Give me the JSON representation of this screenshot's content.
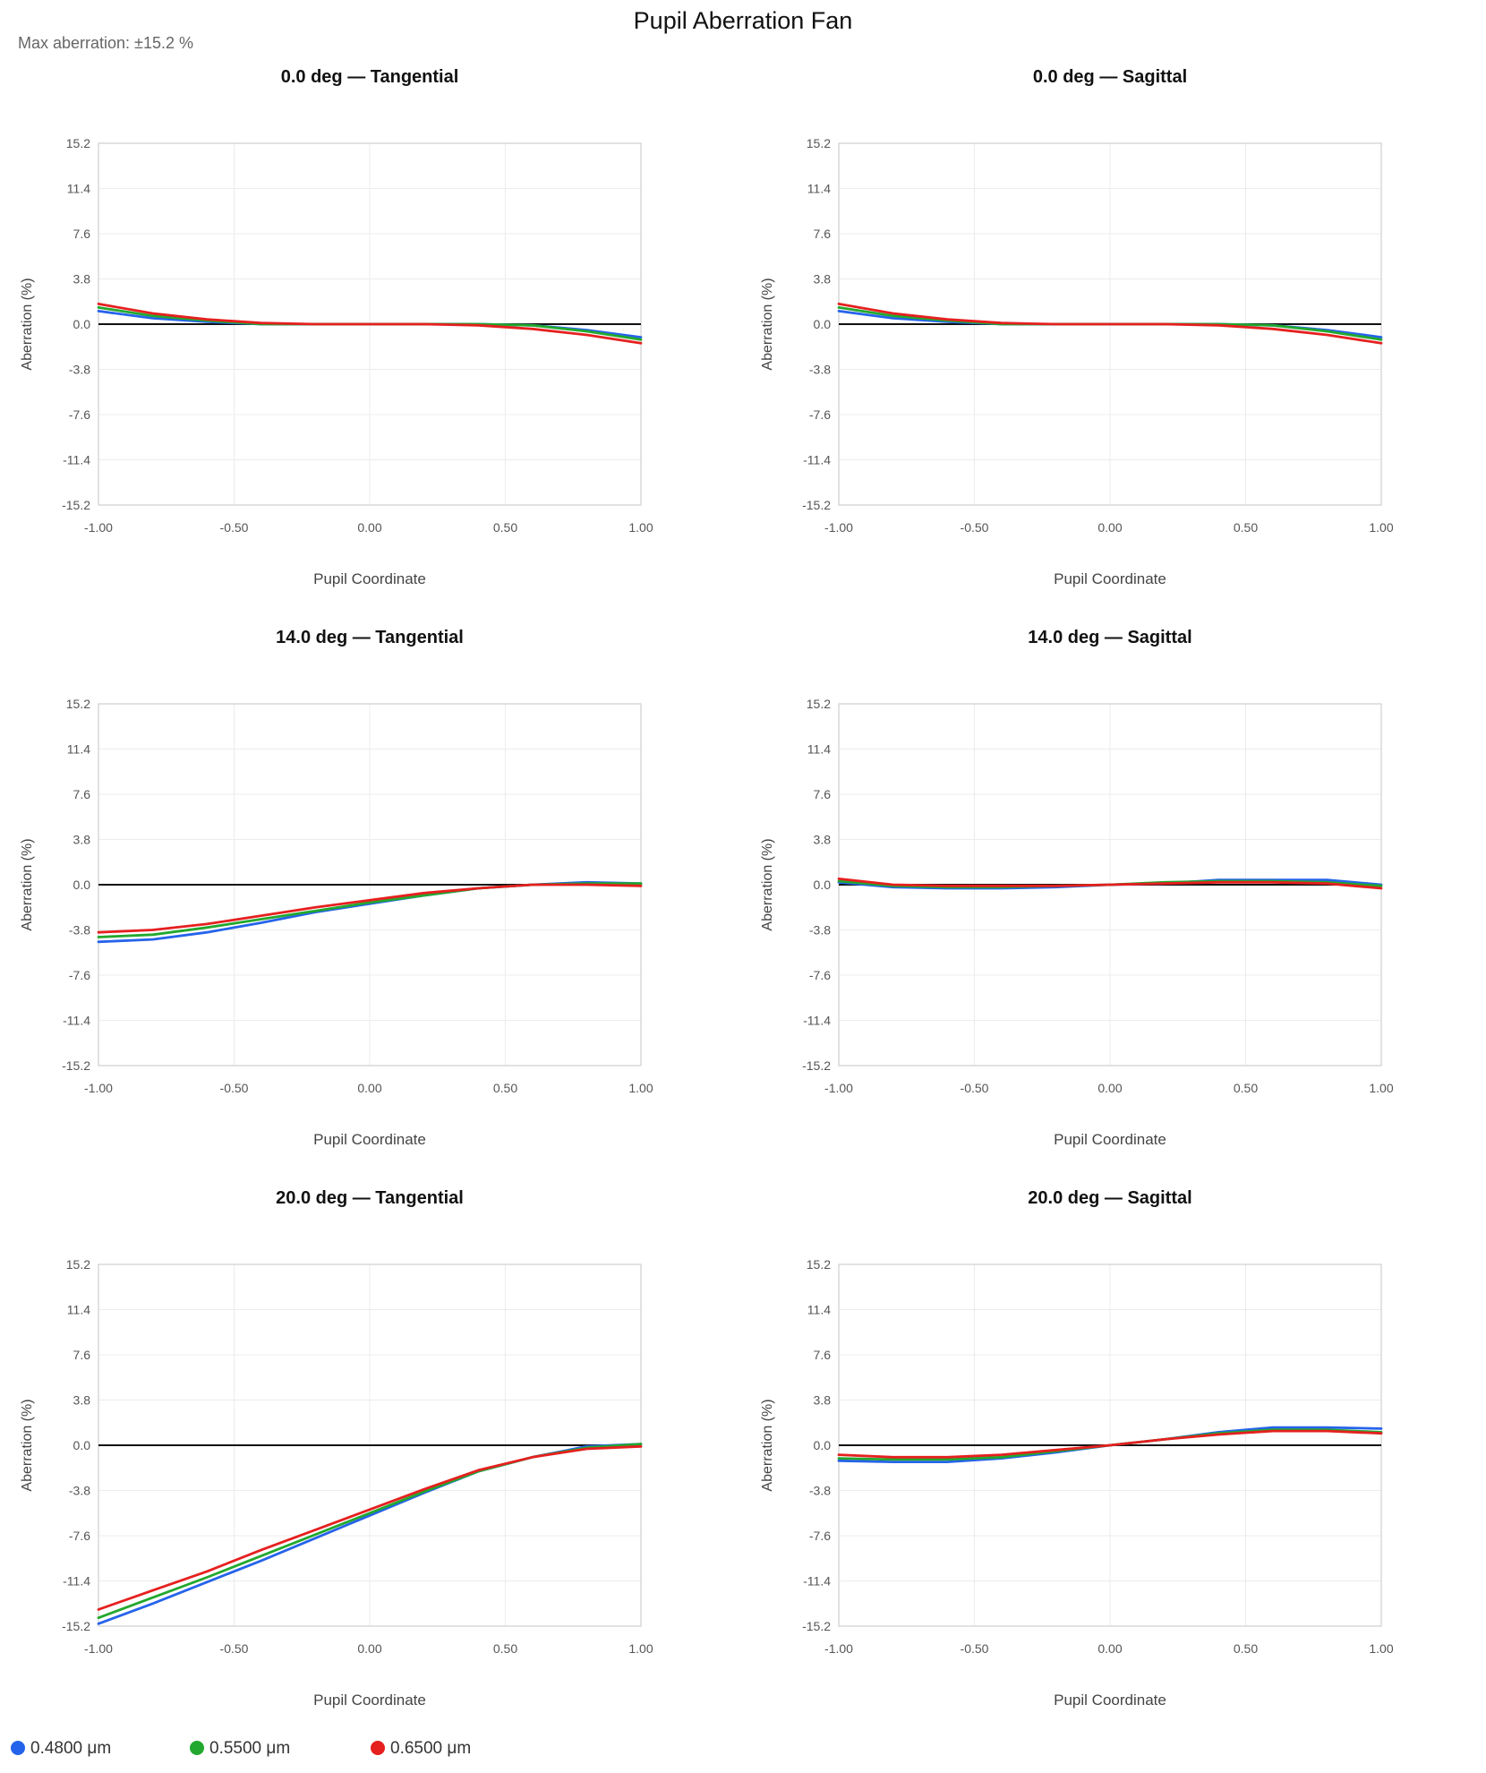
{
  "title": "Pupil Aberration Fan",
  "subtitle": "Max aberration: ±15.2 %",
  "legend": [
    {
      "label": "0.4800 μm",
      "color": "#2563eb"
    },
    {
      "label": "0.5500 μm",
      "color": "#22a82e"
    },
    {
      "label": "0.6500 μm",
      "color": "#e5201f"
    }
  ],
  "chart_data": [
    {
      "type": "line",
      "title": "0.0 deg — Tangential",
      "xlabel": "Pupil Coordinate",
      "ylabel": "Aberration (%)",
      "xlim": [
        -1,
        1
      ],
      "ylim": [
        -15.2,
        15.2
      ],
      "xticks": [
        "-1.00",
        "-0.50",
        "0.00",
        "0.50",
        "1.00"
      ],
      "yticks": [
        "15.2",
        "11.4",
        "7.6",
        "3.8",
        "0.0",
        "-3.8",
        "-7.6",
        "-11.4",
        "-15.2"
      ],
      "grid": true,
      "series": [
        {
          "name": "0.4800 μm",
          "x": [
            -1,
            -0.8,
            -0.6,
            -0.4,
            -0.2,
            0,
            0.2,
            0.4,
            0.6,
            0.8,
            1
          ],
          "y": [
            1.1,
            0.5,
            0.2,
            0.0,
            0.0,
            0.0,
            0.0,
            0.0,
            -0.1,
            -0.5,
            -1.1
          ]
        },
        {
          "name": "0.5500 μm",
          "x": [
            -1,
            -0.8,
            -0.6,
            -0.4,
            -0.2,
            0,
            0.2,
            0.4,
            0.6,
            0.8,
            1
          ],
          "y": [
            1.4,
            0.7,
            0.3,
            0.0,
            0.0,
            0.0,
            0.0,
            0.0,
            -0.1,
            -0.6,
            -1.3
          ]
        },
        {
          "name": "0.6500 μm",
          "x": [
            -1,
            -0.8,
            -0.6,
            -0.4,
            -0.2,
            0,
            0.2,
            0.4,
            0.6,
            0.8,
            1
          ],
          "y": [
            1.7,
            0.9,
            0.4,
            0.1,
            0.0,
            0.0,
            0.0,
            -0.1,
            -0.4,
            -0.9,
            -1.6
          ]
        }
      ]
    },
    {
      "type": "line",
      "title": "0.0 deg — Sagittal",
      "xlabel": "Pupil Coordinate",
      "ylabel": "Aberration (%)",
      "xlim": [
        -1,
        1
      ],
      "ylim": [
        -15.2,
        15.2
      ],
      "xticks": [
        "-1.00",
        "-0.50",
        "0.00",
        "0.50",
        "1.00"
      ],
      "yticks": [
        "15.2",
        "11.4",
        "7.6",
        "3.8",
        "0.0",
        "-3.8",
        "-7.6",
        "-11.4",
        "-15.2"
      ],
      "grid": true,
      "series": [
        {
          "name": "0.4800 μm",
          "x": [
            -1,
            -0.8,
            -0.6,
            -0.4,
            -0.2,
            0,
            0.2,
            0.4,
            0.6,
            0.8,
            1
          ],
          "y": [
            1.1,
            0.5,
            0.2,
            0.0,
            0.0,
            0.0,
            0.0,
            0.0,
            -0.1,
            -0.5,
            -1.1
          ]
        },
        {
          "name": "0.5500 μm",
          "x": [
            -1,
            -0.8,
            -0.6,
            -0.4,
            -0.2,
            0,
            0.2,
            0.4,
            0.6,
            0.8,
            1
          ],
          "y": [
            1.4,
            0.7,
            0.3,
            0.0,
            0.0,
            0.0,
            0.0,
            0.0,
            -0.1,
            -0.6,
            -1.3
          ]
        },
        {
          "name": "0.6500 μm",
          "x": [
            -1,
            -0.8,
            -0.6,
            -0.4,
            -0.2,
            0,
            0.2,
            0.4,
            0.6,
            0.8,
            1
          ],
          "y": [
            1.7,
            0.9,
            0.4,
            0.1,
            0.0,
            0.0,
            0.0,
            -0.1,
            -0.4,
            -0.9,
            -1.6
          ]
        }
      ]
    },
    {
      "type": "line",
      "title": "14.0 deg — Tangential",
      "xlabel": "Pupil Coordinate",
      "ylabel": "Aberration (%)",
      "xlim": [
        -1,
        1
      ],
      "ylim": [
        -15.2,
        15.2
      ],
      "xticks": [
        "-1.00",
        "-0.50",
        "0.00",
        "0.50",
        "1.00"
      ],
      "yticks": [
        "15.2",
        "11.4",
        "7.6",
        "3.8",
        "0.0",
        "-3.8",
        "-7.6",
        "-11.4",
        "-15.2"
      ],
      "grid": true,
      "series": [
        {
          "name": "0.4800 μm",
          "x": [
            -1,
            -0.8,
            -0.6,
            -0.4,
            -0.2,
            0,
            0.2,
            0.4,
            0.6,
            0.8,
            1
          ],
          "y": [
            -4.8,
            -4.6,
            -4.0,
            -3.2,
            -2.3,
            -1.6,
            -0.9,
            -0.3,
            0.0,
            0.2,
            0.1
          ]
        },
        {
          "name": "0.5500 μm",
          "x": [
            -1,
            -0.8,
            -0.6,
            -0.4,
            -0.2,
            0,
            0.2,
            0.4,
            0.6,
            0.8,
            1
          ],
          "y": [
            -4.4,
            -4.2,
            -3.6,
            -2.9,
            -2.2,
            -1.5,
            -0.9,
            -0.3,
            0.0,
            0.1,
            0.1
          ]
        },
        {
          "name": "0.6500 μm",
          "x": [
            -1,
            -0.8,
            -0.6,
            -0.4,
            -0.2,
            0,
            0.2,
            0.4,
            0.6,
            0.8,
            1
          ],
          "y": [
            -4.0,
            -3.8,
            -3.3,
            -2.6,
            -1.9,
            -1.3,
            -0.7,
            -0.3,
            0.0,
            0.0,
            -0.1
          ]
        }
      ]
    },
    {
      "type": "line",
      "title": "14.0 deg — Sagittal",
      "xlabel": "Pupil Coordinate",
      "ylabel": "Aberration (%)",
      "xlim": [
        -1,
        1
      ],
      "ylim": [
        -15.2,
        15.2
      ],
      "xticks": [
        "-1.00",
        "-0.50",
        "0.00",
        "0.50",
        "1.00"
      ],
      "yticks": [
        "15.2",
        "11.4",
        "7.6",
        "3.8",
        "0.0",
        "-3.8",
        "-7.6",
        "-11.4",
        "-15.2"
      ],
      "grid": true,
      "series": [
        {
          "name": "0.4800 μm",
          "x": [
            -1,
            -0.8,
            -0.6,
            -0.4,
            -0.2,
            0,
            0.2,
            0.4,
            0.6,
            0.8,
            1
          ],
          "y": [
            0.2,
            -0.2,
            -0.3,
            -0.3,
            -0.2,
            0.0,
            0.1,
            0.4,
            0.4,
            0.4,
            0.0
          ]
        },
        {
          "name": "0.5500 μm",
          "x": [
            -1,
            -0.8,
            -0.6,
            -0.4,
            -0.2,
            0,
            0.2,
            0.4,
            0.6,
            0.8,
            1
          ],
          "y": [
            0.3,
            -0.1,
            -0.2,
            -0.2,
            -0.1,
            0.0,
            0.2,
            0.3,
            0.3,
            0.2,
            -0.1
          ]
        },
        {
          "name": "0.6500 μm",
          "x": [
            -1,
            -0.8,
            -0.6,
            -0.4,
            -0.2,
            0,
            0.2,
            0.4,
            0.6,
            0.8,
            1
          ],
          "y": [
            0.5,
            0.0,
            -0.1,
            -0.1,
            -0.1,
            0.0,
            0.1,
            0.2,
            0.2,
            0.1,
            -0.3
          ]
        }
      ]
    },
    {
      "type": "line",
      "title": "20.0 deg — Tangential",
      "xlabel": "Pupil Coordinate",
      "ylabel": "Aberration (%)",
      "xlim": [
        -1,
        1
      ],
      "ylim": [
        -15.2,
        15.2
      ],
      "xticks": [
        "-1.00",
        "-0.50",
        "0.00",
        "0.50",
        "1.00"
      ],
      "yticks": [
        "15.2",
        "11.4",
        "7.6",
        "3.8",
        "0.0",
        "-3.8",
        "-7.6",
        "-11.4",
        "-15.2"
      ],
      "grid": true,
      "series": [
        {
          "name": "0.4800 μm",
          "x": [
            -1,
            -0.8,
            -0.6,
            -0.4,
            -0.2,
            0,
            0.2,
            0.4,
            0.6,
            0.8,
            1
          ],
          "y": [
            -15.0,
            -13.3,
            -11.5,
            -9.7,
            -7.8,
            -5.9,
            -4.0,
            -2.2,
            -1.0,
            -0.1,
            0.1
          ]
        },
        {
          "name": "0.5500 μm",
          "x": [
            -1,
            -0.8,
            -0.6,
            -0.4,
            -0.2,
            0,
            0.2,
            0.4,
            0.6,
            0.8,
            1
          ],
          "y": [
            -14.5,
            -12.8,
            -11.1,
            -9.3,
            -7.5,
            -5.7,
            -3.9,
            -2.2,
            -1.0,
            -0.2,
            0.1
          ]
        },
        {
          "name": "0.6500 μm",
          "x": [
            -1,
            -0.8,
            -0.6,
            -0.4,
            -0.2,
            0,
            0.2,
            0.4,
            0.6,
            0.8,
            1
          ],
          "y": [
            -13.8,
            -12.2,
            -10.6,
            -8.8,
            -7.1,
            -5.4,
            -3.7,
            -2.1,
            -1.0,
            -0.3,
            -0.1
          ]
        }
      ]
    },
    {
      "type": "line",
      "title": "20.0 deg — Sagittal",
      "xlabel": "Pupil Coordinate",
      "ylabel": "Aberration (%)",
      "xlim": [
        -1,
        1
      ],
      "ylim": [
        -15.2,
        15.2
      ],
      "xticks": [
        "-1.00",
        "-0.50",
        "0.00",
        "0.50",
        "1.00"
      ],
      "yticks": [
        "15.2",
        "11.4",
        "7.6",
        "3.8",
        "0.0",
        "-3.8",
        "-7.6",
        "-11.4",
        "-15.2"
      ],
      "grid": true,
      "series": [
        {
          "name": "0.4800 μm",
          "x": [
            -1,
            -0.8,
            -0.6,
            -0.4,
            -0.2,
            0,
            0.2,
            0.4,
            0.6,
            0.8,
            1
          ],
          "y": [
            -1.3,
            -1.4,
            -1.4,
            -1.1,
            -0.6,
            0.0,
            0.5,
            1.1,
            1.5,
            1.5,
            1.4
          ]
        },
        {
          "name": "0.5500 μm",
          "x": [
            -1,
            -0.8,
            -0.6,
            -0.4,
            -0.2,
            0,
            0.2,
            0.4,
            0.6,
            0.8,
            1
          ],
          "y": [
            -1.1,
            -1.2,
            -1.2,
            -1.0,
            -0.5,
            0.0,
            0.5,
            1.0,
            1.3,
            1.3,
            1.1
          ]
        },
        {
          "name": "0.6500 μm",
          "x": [
            -1,
            -0.8,
            -0.6,
            -0.4,
            -0.2,
            0,
            0.2,
            0.4,
            0.6,
            0.8,
            1
          ],
          "y": [
            -0.8,
            -1.0,
            -1.0,
            -0.8,
            -0.4,
            0.0,
            0.5,
            0.9,
            1.2,
            1.2,
            1.0
          ]
        }
      ]
    }
  ]
}
